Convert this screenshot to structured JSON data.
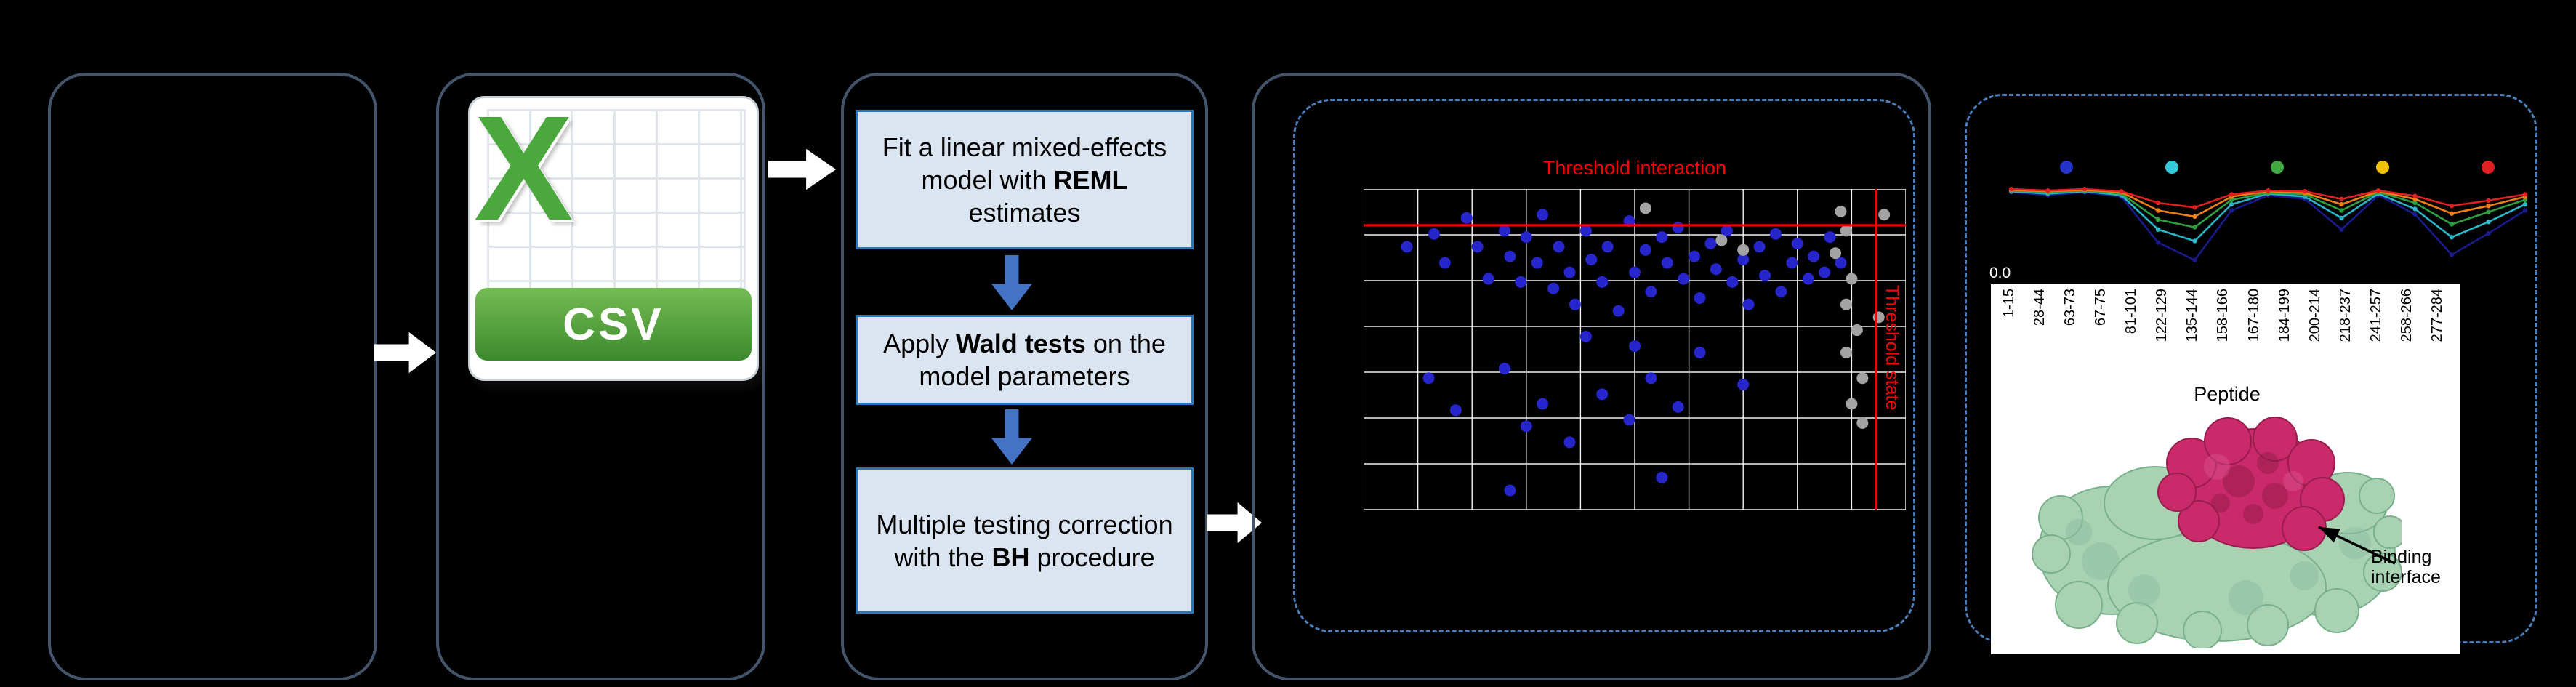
{
  "canvas": {
    "bg": "#000000"
  },
  "pipeline": {
    "csv_icon": {
      "letter": "X",
      "label": "CSV"
    },
    "steps": [
      {
        "pre": "Fit a linear mixed-effects model with ",
        "bold": "REML",
        "post": " estimates"
      },
      {
        "pre": "Apply ",
        "bold": "Wald tests",
        "post": " on the model parameters"
      },
      {
        "pre": "Multiple testing correction with the ",
        "bold": "BH",
        "post": " procedure"
      }
    ]
  },
  "chart_data": [
    {
      "type": "scatter",
      "title": "Threshold interaction",
      "vertical_threshold_label": "Threshold state",
      "grid": {
        "v": 11,
        "h": 8,
        "color": "#ffffff"
      },
      "thresholds": {
        "horizontal_y": 0.887,
        "vertical_x": 0.945,
        "color": "#ff0000"
      },
      "point_colors": {
        "blue": "#2626cc",
        "gray": "#a3a3a3"
      },
      "points_blue": [
        [
          0.08,
          0.82
        ],
        [
          0.13,
          0.86
        ],
        [
          0.15,
          0.77
        ],
        [
          0.19,
          0.91
        ],
        [
          0.21,
          0.82
        ],
        [
          0.23,
          0.72
        ],
        [
          0.26,
          0.87
        ],
        [
          0.27,
          0.79
        ],
        [
          0.29,
          0.71
        ],
        [
          0.3,
          0.85
        ],
        [
          0.32,
          0.77
        ],
        [
          0.33,
          0.92
        ],
        [
          0.35,
          0.69
        ],
        [
          0.36,
          0.82
        ],
        [
          0.38,
          0.74
        ],
        [
          0.39,
          0.64
        ],
        [
          0.41,
          0.87
        ],
        [
          0.42,
          0.78
        ],
        [
          0.44,
          0.71
        ],
        [
          0.45,
          0.82
        ],
        [
          0.47,
          0.62
        ],
        [
          0.49,
          0.9
        ],
        [
          0.5,
          0.74
        ],
        [
          0.52,
          0.81
        ],
        [
          0.53,
          0.68
        ],
        [
          0.55,
          0.85
        ],
        [
          0.56,
          0.77
        ],
        [
          0.58,
          0.88
        ],
        [
          0.59,
          0.72
        ],
        [
          0.61,
          0.79
        ],
        [
          0.62,
          0.66
        ],
        [
          0.64,
          0.83
        ],
        [
          0.65,
          0.75
        ],
        [
          0.67,
          0.87
        ],
        [
          0.68,
          0.71
        ],
        [
          0.7,
          0.78
        ],
        [
          0.71,
          0.64
        ],
        [
          0.73,
          0.82
        ],
        [
          0.74,
          0.73
        ],
        [
          0.76,
          0.86
        ],
        [
          0.77,
          0.68
        ],
        [
          0.79,
          0.77
        ],
        [
          0.8,
          0.83
        ],
        [
          0.82,
          0.72
        ],
        [
          0.83,
          0.79
        ],
        [
          0.85,
          0.74
        ],
        [
          0.86,
          0.85
        ],
        [
          0.88,
          0.77
        ],
        [
          0.12,
          0.41
        ],
        [
          0.17,
          0.31
        ],
        [
          0.26,
          0.44
        ],
        [
          0.3,
          0.26
        ],
        [
          0.33,
          0.33
        ],
        [
          0.38,
          0.21
        ],
        [
          0.44,
          0.36
        ],
        [
          0.49,
          0.28
        ],
        [
          0.53,
          0.41
        ],
        [
          0.58,
          0.32
        ],
        [
          0.41,
          0.54
        ],
        [
          0.5,
          0.51
        ],
        [
          0.62,
          0.49
        ],
        [
          0.7,
          0.39
        ],
        [
          0.27,
          0.06
        ],
        [
          0.55,
          0.1
        ]
      ],
      "points_gray": [
        [
          0.88,
          0.93
        ],
        [
          0.89,
          0.87
        ],
        [
          0.87,
          0.8
        ],
        [
          0.9,
          0.72
        ],
        [
          0.89,
          0.64
        ],
        [
          0.91,
          0.56
        ],
        [
          0.89,
          0.49
        ],
        [
          0.92,
          0.41
        ],
        [
          0.9,
          0.33
        ],
        [
          0.92,
          0.27
        ],
        [
          0.52,
          0.94
        ],
        [
          0.66,
          0.84
        ],
        [
          0.7,
          0.81
        ],
        [
          0.96,
          0.92
        ],
        [
          0.95,
          0.6
        ]
      ]
    },
    {
      "type": "line",
      "xlabel": "Peptide",
      "y_tick_label": "0.0",
      "annotation": "Binding interface",
      "x_tick_labels": [
        "1-15",
        "28-44",
        "63-73",
        "67-75",
        "81-101",
        "122-129",
        "135-144",
        "158-166",
        "167-180",
        "184-199",
        "200-214",
        "218-237",
        "241-257",
        "258-266",
        "277-284"
      ],
      "legend_dot_colors": [
        "#2433c8",
        "#35c8d8",
        "#3faa3f",
        "#f2c200",
        "#e02020"
      ],
      "series": [
        {
          "name": "navy",
          "color": "#1a1a8c",
          "values": [
            0.06,
            0.1,
            0.06,
            0.12,
            0.72,
            0.95,
            0.3,
            0.1,
            0.15,
            0.55,
            0.1,
            0.35,
            0.88,
            0.6,
            0.3
          ]
        },
        {
          "name": "cyan",
          "color": "#2bb5c8",
          "values": [
            0.05,
            0.08,
            0.05,
            0.1,
            0.55,
            0.7,
            0.22,
            0.08,
            0.12,
            0.4,
            0.08,
            0.28,
            0.65,
            0.45,
            0.22
          ]
        },
        {
          "name": "green",
          "color": "#2e9e3f",
          "values": [
            0.04,
            0.06,
            0.04,
            0.08,
            0.42,
            0.52,
            0.16,
            0.07,
            0.09,
            0.3,
            0.06,
            0.2,
            0.48,
            0.32,
            0.16
          ]
        },
        {
          "name": "orange",
          "color": "#f07f12",
          "values": [
            0.03,
            0.05,
            0.03,
            0.06,
            0.3,
            0.38,
            0.12,
            0.05,
            0.07,
            0.22,
            0.05,
            0.15,
            0.34,
            0.24,
            0.12
          ]
        },
        {
          "name": "red",
          "color": "#e02020",
          "values": [
            0.02,
            0.04,
            0.02,
            0.05,
            0.2,
            0.26,
            0.09,
            0.04,
            0.05,
            0.15,
            0.04,
            0.11,
            0.24,
            0.17,
            0.09
          ]
        }
      ]
    }
  ]
}
